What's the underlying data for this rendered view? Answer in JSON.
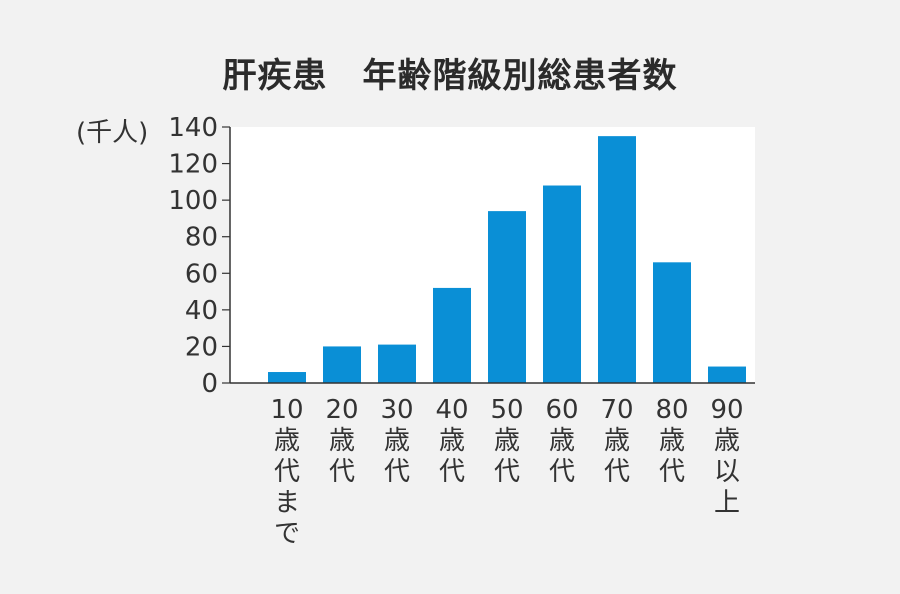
{
  "chart_data": {
    "type": "bar",
    "title": "肝疾患　年齢階級別総患者数",
    "ylabel": "(千人)",
    "xlabel": "",
    "categories": [
      [
        "10",
        "歳",
        "代",
        "ま",
        "で"
      ],
      [
        "20",
        "歳",
        "代"
      ],
      [
        "30",
        "歳",
        "代"
      ],
      [
        "40",
        "歳",
        "代"
      ],
      [
        "50",
        "歳",
        "代"
      ],
      [
        "60",
        "歳",
        "代"
      ],
      [
        "70",
        "歳",
        "代"
      ],
      [
        "80",
        "歳",
        "代"
      ],
      [
        "90",
        "歳",
        "以",
        "上"
      ]
    ],
    "values": [
      6,
      20,
      21,
      52,
      94,
      108,
      135,
      66,
      9
    ],
    "ylim": [
      0,
      140
    ],
    "yticks": [
      "0",
      "20",
      "40",
      "60",
      "80",
      "100",
      "120",
      "140"
    ],
    "grid": false,
    "bar_color": "#0a8fd6",
    "plot_bg": "#ffffff"
  }
}
